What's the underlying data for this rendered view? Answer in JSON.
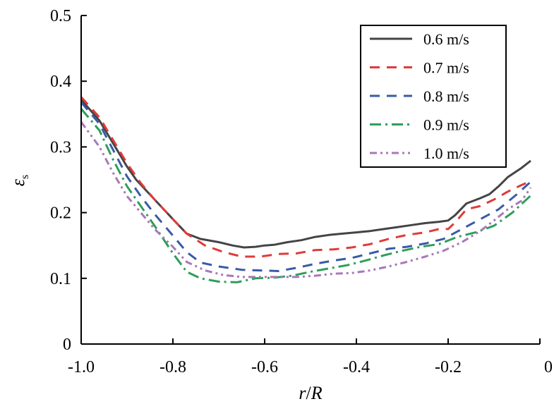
{
  "chart_data": {
    "type": "line",
    "xlabel_parts": [
      "r",
      "/",
      "R"
    ],
    "ylabel_symbol": "ε",
    "ylabel_sub": "s",
    "xlim": [
      -1.0,
      0
    ],
    "ylim": [
      0,
      0.5
    ],
    "x_ticks": [
      -1.0,
      -0.8,
      -0.6,
      -0.4,
      -0.2,
      0
    ],
    "x_tick_labels": [
      "-1.0",
      "-0.8",
      "-0.6",
      "-0.4",
      "-0.2",
      "0"
    ],
    "y_ticks": [
      0,
      0.1,
      0.2,
      0.3,
      0.4,
      0.5
    ],
    "y_tick_labels": [
      "0",
      "0.1",
      "0.2",
      "0.3",
      "0.4",
      "0.5"
    ],
    "grid": false,
    "legend_position": "top-right",
    "series": [
      {
        "name": "0.6 m/s",
        "color": "#444444",
        "dash": "solid",
        "x": [
          -1.0,
          -0.96,
          -0.93,
          -0.9,
          -0.88,
          -0.84,
          -0.8,
          -0.77,
          -0.74,
          -0.7,
          -0.67,
          -0.645,
          -0.62,
          -0.6,
          -0.58,
          -0.55,
          -0.52,
          -0.49,
          -0.46,
          -0.43,
          -0.4,
          -0.37,
          -0.34,
          -0.31,
          -0.28,
          -0.25,
          -0.22,
          -0.2,
          -0.185,
          -0.16,
          -0.13,
          -0.11,
          -0.09,
          -0.07,
          -0.04,
          -0.02
        ],
        "values": [
          0.372,
          0.34,
          0.305,
          0.27,
          0.25,
          0.22,
          0.19,
          0.168,
          0.16,
          0.155,
          0.15,
          0.147,
          0.148,
          0.15,
          0.151,
          0.155,
          0.158,
          0.163,
          0.166,
          0.168,
          0.17,
          0.172,
          0.175,
          0.178,
          0.181,
          0.184,
          0.186,
          0.188,
          0.196,
          0.214,
          0.222,
          0.228,
          0.24,
          0.254,
          0.268,
          0.279
        ]
      },
      {
        "name": "0.7 m/s",
        "color": "#e03a3a",
        "dash": "14,10",
        "x": [
          -1.0,
          -0.96,
          -0.93,
          -0.9,
          -0.87,
          -0.84,
          -0.8,
          -0.77,
          -0.73,
          -0.69,
          -0.65,
          -0.61,
          -0.57,
          -0.53,
          -0.49,
          -0.45,
          -0.41,
          -0.37,
          -0.33,
          -0.29,
          -0.25,
          -0.22,
          -0.2,
          -0.185,
          -0.16,
          -0.13,
          -0.1,
          -0.07,
          -0.04,
          -0.02
        ],
        "values": [
          0.376,
          0.345,
          0.31,
          0.275,
          0.245,
          0.22,
          0.19,
          0.168,
          0.15,
          0.14,
          0.133,
          0.133,
          0.137,
          0.138,
          0.143,
          0.144,
          0.147,
          0.152,
          0.16,
          0.166,
          0.17,
          0.175,
          0.175,
          0.185,
          0.205,
          0.21,
          0.22,
          0.232,
          0.242,
          0.248
        ]
      },
      {
        "name": "0.8 m/s",
        "color": "#3a5aa8",
        "dash": "14,10",
        "x": [
          -1.0,
          -0.96,
          -0.93,
          -0.9,
          -0.87,
          -0.84,
          -0.8,
          -0.77,
          -0.74,
          -0.7,
          -0.65,
          -0.61,
          -0.57,
          -0.53,
          -0.49,
          -0.45,
          -0.41,
          -0.37,
          -0.33,
          -0.29,
          -0.25,
          -0.21,
          -0.17,
          -0.13,
          -0.09,
          -0.05,
          -0.02
        ],
        "values": [
          0.368,
          0.335,
          0.295,
          0.255,
          0.225,
          0.198,
          0.165,
          0.14,
          0.124,
          0.118,
          0.113,
          0.112,
          0.111,
          0.116,
          0.122,
          0.127,
          0.131,
          0.138,
          0.145,
          0.148,
          0.153,
          0.16,
          0.175,
          0.19,
          0.205,
          0.228,
          0.247
        ]
      },
      {
        "name": "0.9 m/s",
        "color": "#2e9e5a",
        "dash": "16,6,3,6",
        "x": [
          -1.0,
          -0.96,
          -0.93,
          -0.9,
          -0.87,
          -0.84,
          -0.8,
          -0.77,
          -0.74,
          -0.7,
          -0.66,
          -0.62,
          -0.58,
          -0.54,
          -0.5,
          -0.46,
          -0.42,
          -0.38,
          -0.34,
          -0.3,
          -0.26,
          -0.22,
          -0.18,
          -0.14,
          -0.1,
          -0.06,
          -0.02
        ],
        "values": [
          0.358,
          0.325,
          0.28,
          0.24,
          0.21,
          0.18,
          0.138,
          0.11,
          0.1,
          0.095,
          0.094,
          0.1,
          0.101,
          0.104,
          0.11,
          0.115,
          0.12,
          0.127,
          0.135,
          0.142,
          0.148,
          0.152,
          0.163,
          0.17,
          0.18,
          0.2,
          0.226
        ]
      },
      {
        "name": "1.0 m/s",
        "color": "#a878b8",
        "dash": "10,5,3,5,3,5",
        "x": [
          -1.0,
          -0.96,
          -0.93,
          -0.9,
          -0.87,
          -0.84,
          -0.8,
          -0.77,
          -0.73,
          -0.69,
          -0.65,
          -0.61,
          -0.57,
          -0.53,
          -0.49,
          -0.45,
          -0.41,
          -0.37,
          -0.33,
          -0.29,
          -0.25,
          -0.21,
          -0.17,
          -0.13,
          -0.1,
          -0.07,
          -0.04,
          -0.02
        ],
        "values": [
          0.338,
          0.3,
          0.26,
          0.225,
          0.2,
          0.175,
          0.148,
          0.125,
          0.112,
          0.105,
          0.102,
          0.102,
          0.102,
          0.102,
          0.104,
          0.107,
          0.108,
          0.112,
          0.118,
          0.125,
          0.133,
          0.142,
          0.155,
          0.172,
          0.188,
          0.205,
          0.218,
          0.238
        ]
      }
    ]
  }
}
